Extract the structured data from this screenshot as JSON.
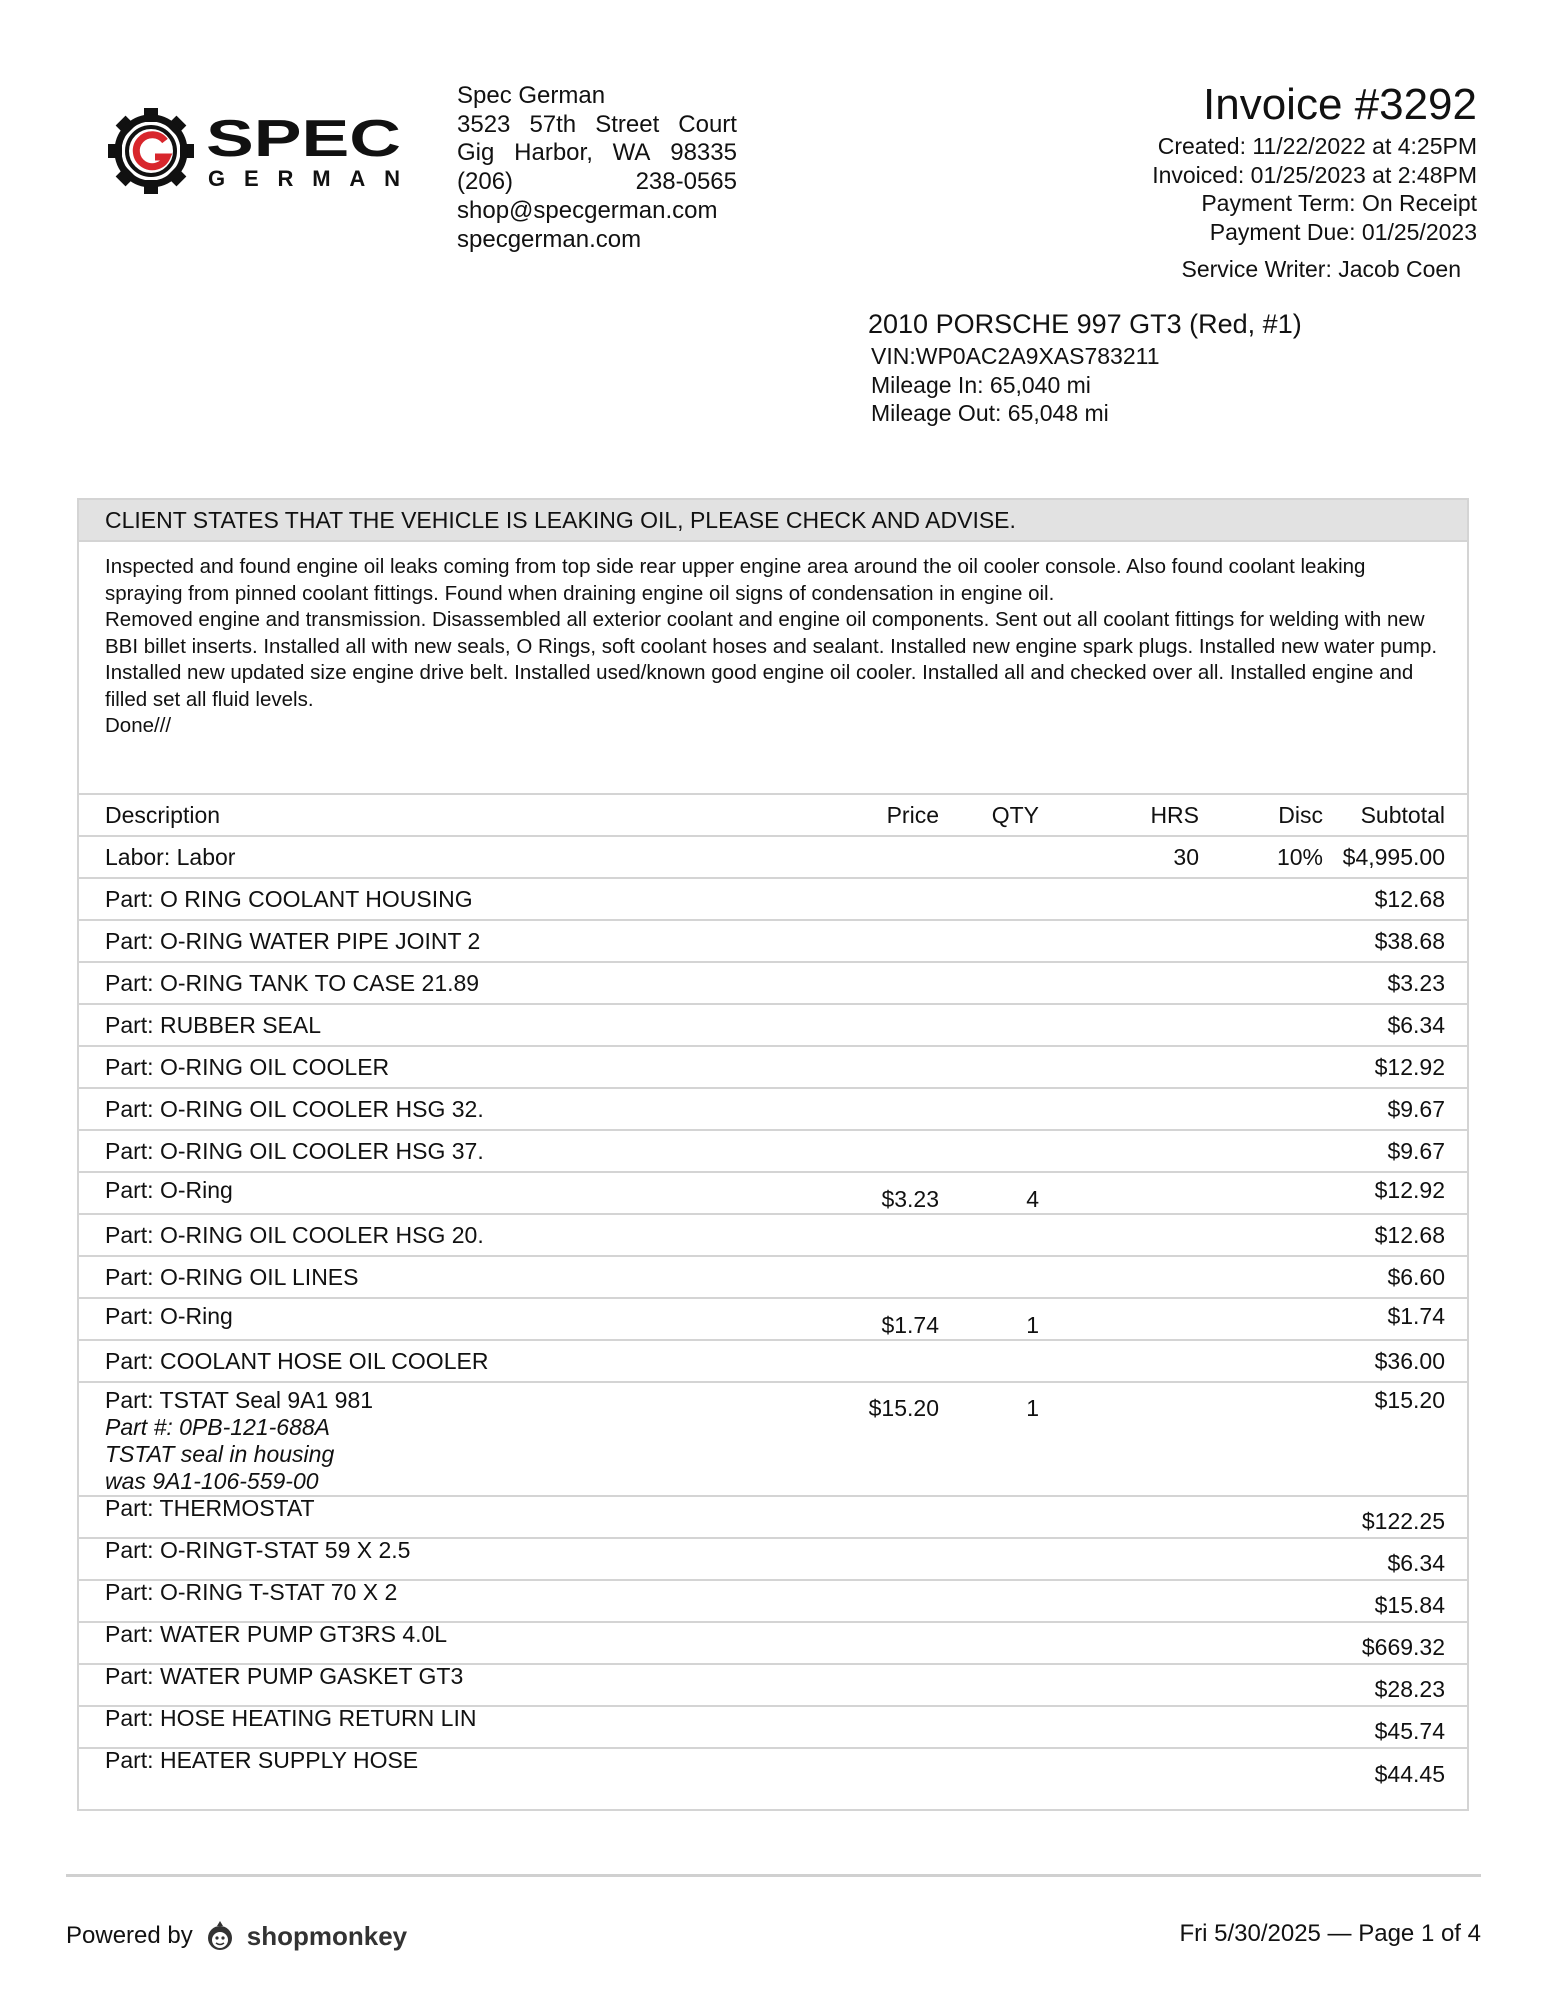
{
  "shop": {
    "name": "Spec German",
    "logo_text": "SPEC GERMAN",
    "street": [
      "3523",
      "57th",
      "Street",
      "Court"
    ],
    "city": [
      "Gig",
      "Harbor,",
      "WA",
      "98335"
    ],
    "phone": [
      "(206)",
      "238-0565"
    ],
    "email": "shop@specgerman.com",
    "website": "specgerman.com",
    "brand_color": "#d8262c"
  },
  "invoice": {
    "title": "Invoice #3292",
    "created": "Created: 11/22/2022 at 4:25PM",
    "invoiced": "Invoiced: 01/25/2023 at 2:48PM",
    "term": "Payment Term: On Receipt",
    "due": "Payment Due: 01/25/2023",
    "writer": "Service Writer: Jacob Coen"
  },
  "vehicle": {
    "title": "2010 PORSCHE 997 GT3 (Red, #1)",
    "vin": "VIN:WP0AC2A9XAS783211",
    "mileage_in": "Mileage In: 65,040 mi",
    "mileage_out": "Mileage Out: 65,048 mi"
  },
  "complaint": "CLIENT STATES THAT THE VEHICLE IS LEAKING OIL, PLEASE CHECK AND ADVISE.",
  "notes": "Inspected and found engine oil leaks coming from top side rear upper engine area around the oil cooler console. Also found coolant leaking spraying from pinned coolant fittings. Found when draining engine oil signs of condensation in engine oil.\nRemoved engine and transmission. Disassembled all exterior coolant and engine oil components. Sent out all coolant fittings for welding with new BBI billet inserts. Installed all with new seals, O Rings, soft coolant hoses and sealant. Installed new engine spark plugs. Installed new water pump. Installed new updated size engine drive belt. Installed used/known good engine oil cooler. Installed all and checked over all. Installed engine and filled set all fluid levels.\nDone///",
  "columns": [
    "Description",
    "Price",
    "QTY",
    "HRS",
    "Disc",
    "Subtotal"
  ],
  "rows": [
    {
      "desc": "Labor: Labor",
      "price": "",
      "qty": "",
      "hrs": "30",
      "disc": "10%",
      "sub": "$4,995.00"
    },
    {
      "desc": "Part: O RING COOLANT HOUSING",
      "sub": "$12.68"
    },
    {
      "desc": "Part: O-RING WATER PIPE JOINT 2",
      "sub": "$38.68"
    },
    {
      "desc": "Part: O-RING TANK TO CASE 21.89",
      "sub": "$3.23"
    },
    {
      "desc": "Part: RUBBER SEAL",
      "sub": "$6.34"
    },
    {
      "desc": "Part: O-RING OIL COOLER",
      "sub": "$12.92"
    },
    {
      "desc": "Part: O-RING OIL COOLER HSG 32.",
      "sub": "$9.67"
    },
    {
      "desc": "Part: O-RING OIL COOLER HSG 37.",
      "sub": "$9.67"
    },
    {
      "desc": "Part: O-Ring",
      "price": "$3.23",
      "qty": "4",
      "sub": "$12.92"
    },
    {
      "desc": "Part: O-RING OIL COOLER HSG 20.",
      "sub": "$12.68"
    },
    {
      "desc": "Part: O-RING OIL LINES",
      "sub": "$6.60"
    },
    {
      "desc": "Part: O-Ring",
      "price": "$1.74",
      "qty": "1",
      "sub": "$1.74"
    },
    {
      "desc": "Part: COOLANT HOSE OIL COOLER",
      "sub": "$36.00"
    },
    {
      "desc": "Part: TSTAT Seal 9A1 981",
      "notes": [
        "Part #: 0PB-121-688A",
        "TSTAT seal in housing",
        "was 9A1-106-559-00"
      ],
      "price": "$15.20",
      "qty": "1",
      "sub": "$15.20"
    },
    {
      "desc": "Part: THERMOSTAT",
      "sub": "$122.25"
    },
    {
      "desc": "Part: O-RINGT-STAT 59 X 2.5",
      "sub": "$6.34"
    },
    {
      "desc": "Part: O-RING T-STAT 70 X 2",
      "sub": "$15.84"
    },
    {
      "desc": "Part: WATER PUMP GT3RS 4.0L",
      "sub": "$669.32"
    },
    {
      "desc": "Part: WATER PUMP GASKET GT3",
      "sub": "$28.23"
    },
    {
      "desc": "Part: HOSE HEATING RETURN LIN",
      "sub": "$45.74"
    },
    {
      "desc": "Part: HEATER SUPPLY HOSE",
      "sub": "$44.45"
    }
  ],
  "footer": {
    "powered_by": "Powered by",
    "brand": "shopmonkey",
    "page": "Fri 5/30/2025 — Page 1 of 4"
  }
}
